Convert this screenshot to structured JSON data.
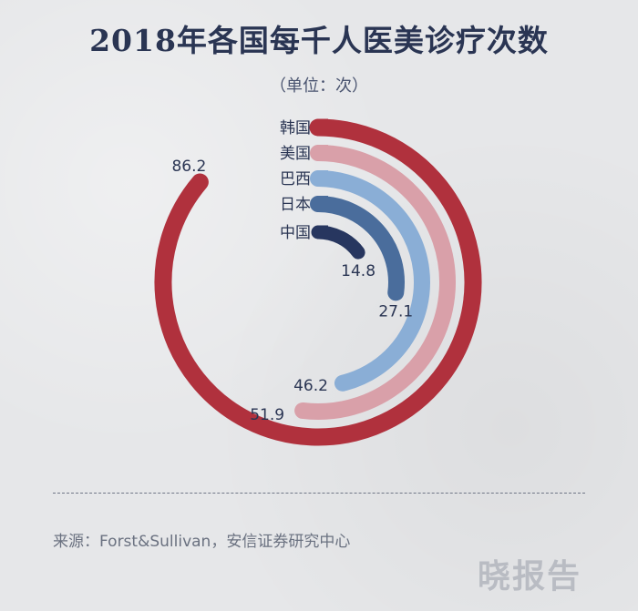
{
  "title": "2018年各国每千人医美诊疗次数",
  "unit": "（单位：次）",
  "source": "来源：Forst&Sullivan，安信证券研究中心",
  "watermark": "晓报告",
  "chart_data": {
    "type": "radial-bar",
    "title": "2018年各国每千人医美诊疗次数",
    "unit": "（单位：次）",
    "max": 100,
    "series": [
      {
        "name": "韩国",
        "value": 86.2,
        "color": "#b0313d"
      },
      {
        "name": "美国",
        "value": 51.9,
        "color": "#d9a0a9"
      },
      {
        "name": "巴西",
        "value": 46.2,
        "color": "#8aaed6"
      },
      {
        "name": "日本",
        "value": 27.1,
        "color": "#4a6d9c"
      },
      {
        "name": "中国",
        "value": 14.8,
        "color": "#27365f"
      }
    ]
  }
}
